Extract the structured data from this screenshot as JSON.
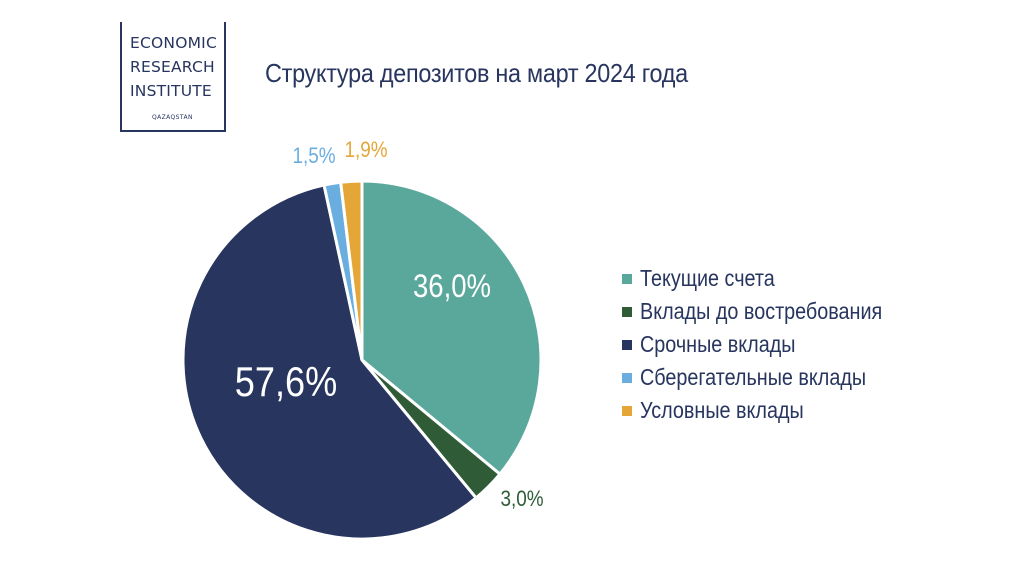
{
  "logo": {
    "line1": "ECONOMIC",
    "line2": "RESEARCH",
    "line3": "INSTITUTE",
    "sub": "QAZAQSTAN"
  },
  "chart_data": {
    "type": "pie",
    "title": "Структура депозитов на март 2024 года",
    "categories": [
      "Текущие счета",
      "Вклады до востребования",
      "Срочные вклады",
      "Сберегательные вклады",
      "Условные вклады"
    ],
    "values": [
      36.0,
      3.0,
      57.6,
      1.5,
      1.9
    ],
    "labels": [
      "36,0%",
      "3,0%",
      "57,6%",
      "1,5%",
      "1,9%"
    ],
    "colors": [
      "#5aa89c",
      "#2f5c37",
      "#27355f",
      "#6aaee0",
      "#e4a637"
    ],
    "legend_position": "right"
  }
}
